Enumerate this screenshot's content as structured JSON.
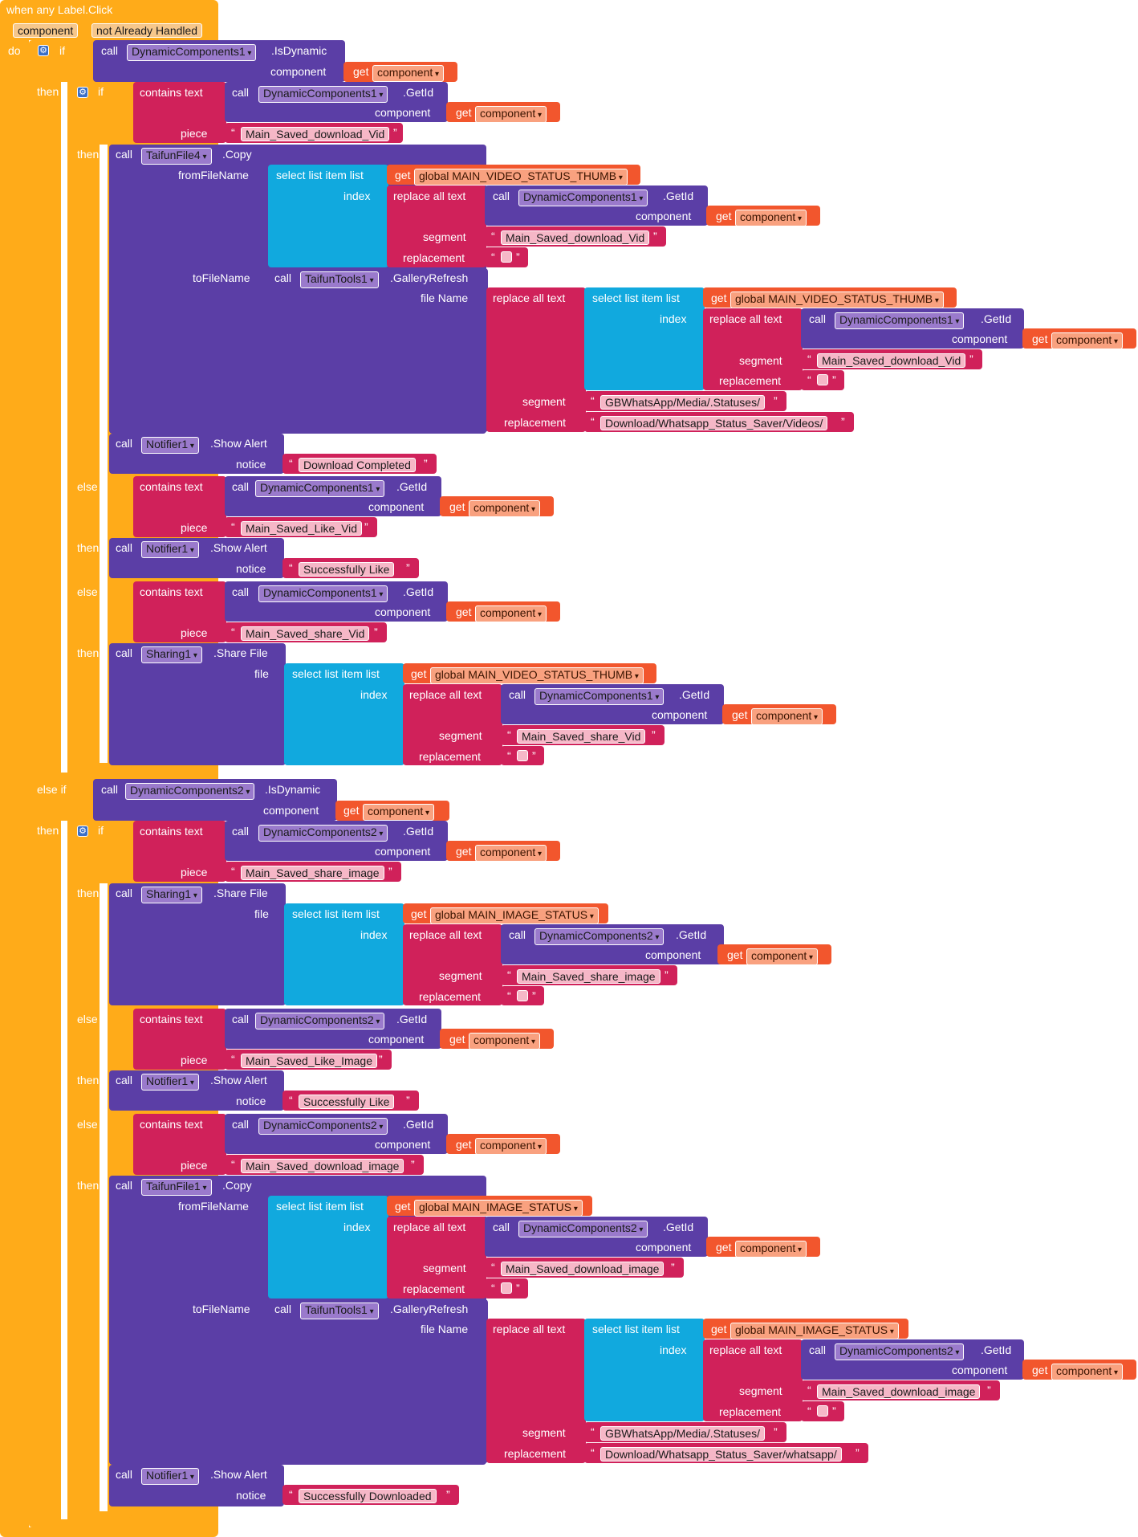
{
  "event": {
    "title": "when any Label.Click",
    "params": [
      "component",
      "not Already Handled"
    ],
    "do_label": "do"
  },
  "kw": {
    "if": "if",
    "then": "then",
    "else_if": "else if",
    "call": "call",
    "get": "get",
    "contains_text": "contains  text",
    "piece": "piece",
    "component": "component",
    "from_file_name": "fromFileName",
    "to_file_name": "toFileName",
    "file_name": "file Name",
    "index": "index",
    "segment": "segment",
    "replacement": "replacement",
    "notice": "notice",
    "file": "file",
    "select_list_item": "select list item  list",
    "replace_all_text": "replace all text",
    "is_dynamic": ".IsDynamic",
    "get_id": ".GetId",
    "copy": ".Copy",
    "gallery_refresh": ".GalleryRefresh",
    "show_alert": ".Show Alert",
    "share_file": ".Share File"
  },
  "components": {
    "dc1": "DynamicComponents1",
    "dc2": "DynamicComponents2",
    "taifun_file4": "TaifunFile4",
    "taifun_file1": "TaifunFile1",
    "taifun_tools1": "TaifunTools1",
    "notifier1": "Notifier1",
    "sharing1": "Sharing1"
  },
  "vars": {
    "component": "component",
    "video_thumb": "global MAIN_VIDEO_STATUS_THUMB",
    "image_status": "global MAIN_IMAGE_STATUS"
  },
  "strings": {
    "main_saved_download_vid": "Main_Saved_download_Vid",
    "main_saved_like_vid": "Main_Saved_Like_Vid",
    "main_saved_share_vid": "Main_Saved_share_Vid",
    "main_saved_share_image": "Main_Saved_share_image",
    "main_saved_like_image": "Main_Saved_Like_Image",
    "main_saved_download_image": "Main_Saved_download_image",
    "gb_statuses": "GBWhatsApp/Media/.Statuses/",
    "dl_videos": "Download/Whatsapp_Status_Saver/Videos/",
    "dl_whatsapp": "Download/Whatsapp_Status_Saver/whatsapp/",
    "download_completed": "Download Completed",
    "successfully_like": "Successfully Like",
    "successfully_downloaded": "Successfully Downloaded"
  },
  "colors": {
    "control": "#FFAB19",
    "procedure": "#5B3EA6",
    "text": "#D0215A",
    "list": "#11A9DE",
    "variable": "#F2562D"
  }
}
